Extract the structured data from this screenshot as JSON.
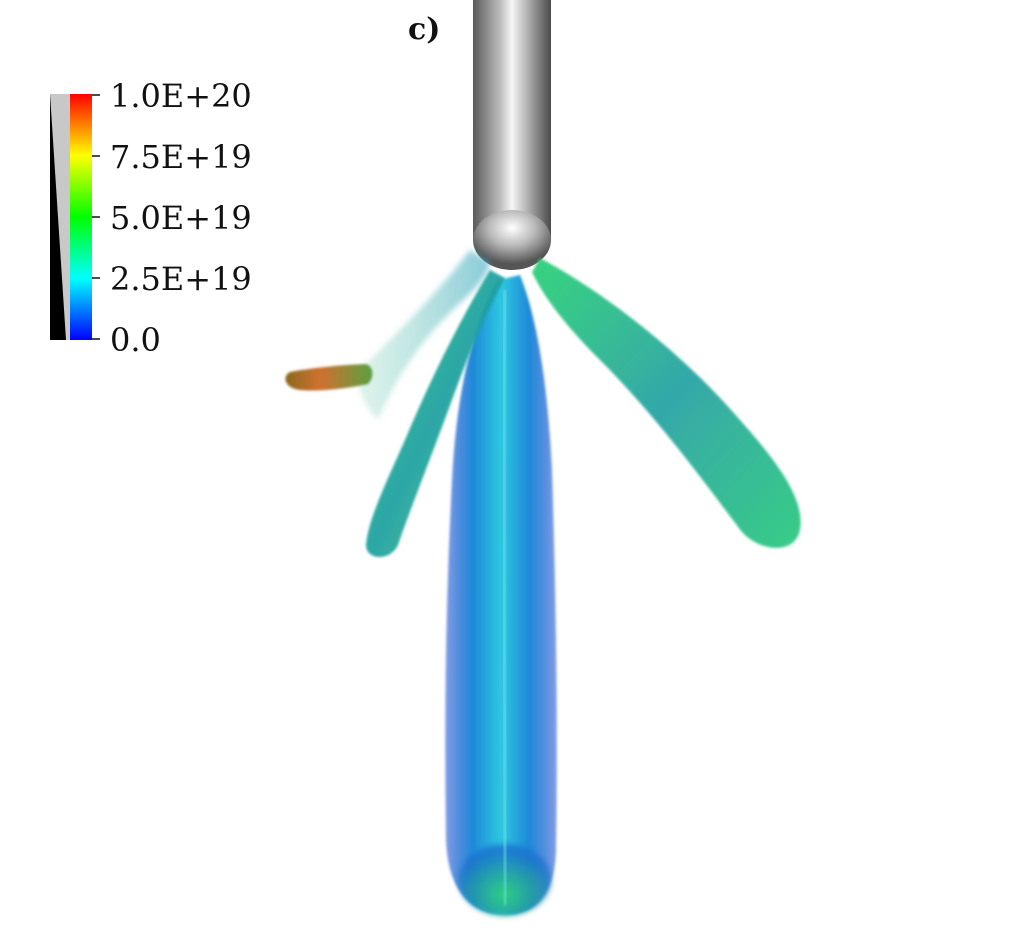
{
  "panel_label": "c)",
  "colorbar": {
    "tick_labels": [
      "1.0E+20",
      "7.5E+19",
      "5.0E+19",
      "2.5E+19",
      "0.0"
    ],
    "min": 0.0,
    "max": 1e+20,
    "colors": [
      "#0000ff",
      "#00ffff",
      "#00ff00",
      "#ffff00",
      "#ff0000"
    ]
  },
  "scene": {
    "background": "#ffffff",
    "electrode_color": "#9a9a9a",
    "streamer_colors": {
      "low": "#1a5fd0",
      "mid": "#1fd8b8",
      "high": "#2fd050",
      "peak": "#d06018"
    }
  }
}
